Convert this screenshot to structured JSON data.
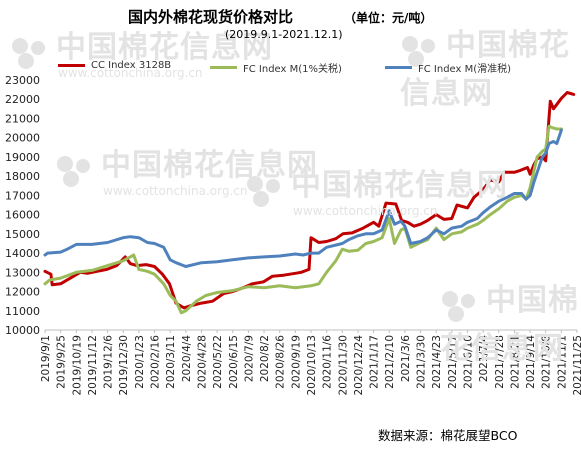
{
  "title": "国内外棉花现货价格对比",
  "unit": "（单位：元/吨）",
  "subtitle": "(2019.9.1-2021.12.1)",
  "source": "数据来源：棉花展望BCO",
  "watermark": {
    "cn": "中国棉花信息网",
    "en": "www.cottonchina.org.cn"
  },
  "chart_data": {
    "type": "line",
    "title": "国内外棉花现货价格对比",
    "ylim": [
      10000,
      23000
    ],
    "yticks": [
      10000,
      11000,
      12000,
      13000,
      14000,
      15000,
      16000,
      17000,
      18000,
      19000,
      20000,
      21000,
      22000,
      23000
    ],
    "xlim": [
      "2019-09-01",
      "2021-11-25"
    ],
    "xtick_labels": [
      "2019/9/1",
      "2019/9/25",
      "2019/10/19",
      "2019/11/12",
      "2019/12/6",
      "2019/12/30",
      "2020/1/23",
      "2020/2/16",
      "2020/3/11",
      "2020/4/4",
      "2020/4/28",
      "2020/5/22",
      "2020/6/15",
      "2020/7/9",
      "2020/8/2",
      "2020/8/26",
      "2020/9/19",
      "2020/10/13",
      "2020/11/6",
      "2020/11/30",
      "2020/12/24",
      "2021/1/17",
      "2021/2/10",
      "2021/3/6",
      "2021/3/30",
      "2021/4/23",
      "2021/5/17",
      "2021/6/10",
      "2021/7/4",
      "2021/7/28",
      "2021/8/21",
      "2021/9/14",
      "2021/10/8",
      "2021/11/1",
      "2021/11/25"
    ],
    "grid": false,
    "legend_position": "top",
    "series": [
      {
        "name": "CC Index 3128B",
        "color": "#c00000",
        "x": [
          "2019-09-01",
          "2019-09-10",
          "2019-09-12",
          "2019-09-25",
          "2019-10-10",
          "2019-10-25",
          "2019-11-05",
          "2019-11-20",
          "2019-12-05",
          "2019-12-20",
          "2020-01-02",
          "2020-01-10",
          "2020-01-20",
          "2020-02-03",
          "2020-02-16",
          "2020-02-28",
          "2020-03-10",
          "2020-03-20",
          "2020-04-01",
          "2020-04-10",
          "2020-04-28",
          "2020-05-15",
          "2020-06-01",
          "2020-06-15",
          "2020-07-01",
          "2020-07-15",
          "2020-08-01",
          "2020-08-15",
          "2020-09-01",
          "2020-09-19",
          "2020-09-28",
          "2020-10-10",
          "2020-10-13",
          "2020-10-25",
          "2020-11-06",
          "2020-11-20",
          "2020-12-01",
          "2020-12-15",
          "2021-01-01",
          "2021-01-17",
          "2021-01-25",
          "2021-02-05",
          "2021-02-20",
          "2021-03-01",
          "2021-03-10",
          "2021-03-20",
          "2021-03-30",
          "2021-04-10",
          "2021-04-23",
          "2021-05-05",
          "2021-05-17",
          "2021-05-25",
          "2021-06-10",
          "2021-06-20",
          "2021-07-04",
          "2021-07-15",
          "2021-07-28",
          "2021-08-05",
          "2021-08-21",
          "2021-08-30",
          "2021-09-10",
          "2021-09-14",
          "2021-09-20",
          "2021-09-25",
          "2021-10-03",
          "2021-10-08",
          "2021-10-15",
          "2021-10-20",
          "2021-11-01",
          "2021-11-10",
          "2021-11-20"
        ],
        "values": [
          13050,
          12900,
          12350,
          12400,
          12700,
          13000,
          12950,
          13050,
          13150,
          13350,
          13800,
          13450,
          13350,
          13400,
          13300,
          12900,
          12400,
          11400,
          11150,
          11250,
          11400,
          11500,
          11900,
          12000,
          12200,
          12400,
          12500,
          12800,
          12850,
          12950,
          13000,
          13150,
          14800,
          14550,
          14600,
          14750,
          15000,
          15050,
          15300,
          15600,
          15400,
          16600,
          16550,
          15700,
          15600,
          15400,
          15500,
          15700,
          16000,
          15750,
          15800,
          16500,
          16350,
          16900,
          17300,
          17800,
          17700,
          18200,
          18200,
          18300,
          18450,
          18100,
          18600,
          18900,
          19000,
          18800,
          21900,
          21500,
          22050,
          22350,
          22250
        ]
      },
      {
        "name": "FC Index M(1%关税)",
        "color": "#9bbb59",
        "x": [
          "2019-09-01",
          "2019-09-08",
          "2019-09-25",
          "2019-10-19",
          "2019-11-12",
          "2019-12-06",
          "2019-12-30",
          "2020-01-15",
          "2020-01-23",
          "2020-02-05",
          "2020-02-16",
          "2020-03-01",
          "2020-03-11",
          "2020-03-20",
          "2020-03-28",
          "2020-04-04",
          "2020-04-20",
          "2020-05-05",
          "2020-05-22",
          "2020-06-15",
          "2020-07-09",
          "2020-08-02",
          "2020-08-26",
          "2020-09-19",
          "2020-10-01",
          "2020-10-13",
          "2020-10-25",
          "2020-11-06",
          "2020-11-20",
          "2020-11-30",
          "2020-12-10",
          "2020-12-24",
          "2021-01-05",
          "2021-01-17",
          "2021-01-30",
          "2021-02-10",
          "2021-02-18",
          "2021-02-28",
          "2021-03-06",
          "2021-03-15",
          "2021-03-30",
          "2021-04-10",
          "2021-04-23",
          "2021-05-05",
          "2021-05-17",
          "2021-06-01",
          "2021-06-10",
          "2021-06-25",
          "2021-07-04",
          "2021-07-15",
          "2021-07-28",
          "2021-08-10",
          "2021-08-21",
          "2021-09-01",
          "2021-09-08",
          "2021-09-14",
          "2021-09-20",
          "2021-09-25",
          "2021-10-03",
          "2021-10-08",
          "2021-10-13",
          "2021-10-20",
          "2021-10-25",
          "2021-11-01"
        ],
        "values": [
          12400,
          12600,
          12700,
          13000,
          13100,
          13350,
          13600,
          13900,
          13150,
          13050,
          12900,
          12400,
          11800,
          11500,
          10900,
          11000,
          11500,
          11800,
          11950,
          12050,
          12250,
          12200,
          12300,
          12200,
          12250,
          12300,
          12400,
          13000,
          13600,
          14200,
          14100,
          14150,
          14500,
          14600,
          14800,
          15800,
          14500,
          15200,
          15300,
          14300,
          14550,
          14700,
          15300,
          14700,
          15000,
          15100,
          15300,
          15500,
          15700,
          16000,
          16300,
          16700,
          16900,
          17000,
          16800,
          17400,
          18300,
          19000,
          19300,
          19400,
          20600,
          20500,
          20450,
          20450
        ]
      },
      {
        "name": "FC Index M(滑准税)",
        "color": "#4f81bd",
        "x": [
          "2019-09-01",
          "2019-09-05",
          "2019-09-25",
          "2019-10-05",
          "2019-10-19",
          "2019-11-12",
          "2019-12-06",
          "2019-12-30",
          "2020-01-10",
          "2020-01-23",
          "2020-02-05",
          "2020-02-16",
          "2020-03-01",
          "2020-03-11",
          "2020-03-20",
          "2020-04-04",
          "2020-04-28",
          "2020-05-22",
          "2020-06-15",
          "2020-07-09",
          "2020-08-02",
          "2020-08-26",
          "2020-09-19",
          "2020-10-01",
          "2020-10-13",
          "2020-10-25",
          "2020-11-06",
          "2020-11-30",
          "2020-12-10",
          "2020-12-24",
          "2021-01-05",
          "2021-01-17",
          "2021-01-30",
          "2021-02-10",
          "2021-02-18",
          "2021-02-28",
          "2021-03-06",
          "2021-03-15",
          "2021-03-30",
          "2021-04-10",
          "2021-04-23",
          "2021-05-05",
          "2021-05-17",
          "2021-06-01",
          "2021-06-10",
          "2021-06-25",
          "2021-07-04",
          "2021-07-15",
          "2021-07-28",
          "2021-08-10",
          "2021-08-21",
          "2021-09-01",
          "2021-09-08",
          "2021-09-14",
          "2021-09-20",
          "2021-09-25",
          "2021-10-03",
          "2021-10-08",
          "2021-10-13",
          "2021-10-20",
          "2021-10-25",
          "2021-11-01"
        ],
        "values": [
          13900,
          14000,
          14050,
          14200,
          14450,
          14450,
          14550,
          14800,
          14850,
          14800,
          14550,
          14500,
          14300,
          13650,
          13500,
          13300,
          13500,
          13550,
          13650,
          13750,
          13800,
          13850,
          13950,
          13900,
          14000,
          14000,
          14300,
          14500,
          14700,
          14900,
          15000,
          15000,
          15200,
          16200,
          15500,
          15650,
          15400,
          14500,
          14600,
          14800,
          15200,
          15000,
          15300,
          15400,
          15600,
          15800,
          16100,
          16400,
          16700,
          16900,
          17100,
          17100,
          16800,
          17000,
          17700,
          18200,
          19000,
          19200,
          19700,
          19800,
          19700,
          20400
        ]
      }
    ]
  }
}
